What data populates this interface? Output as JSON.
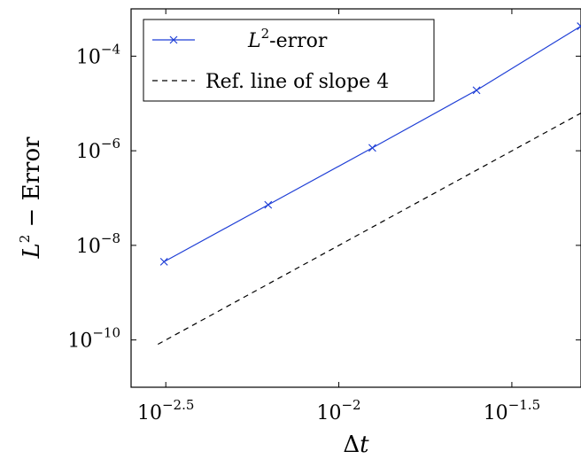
{
  "chart_data": {
    "type": "line",
    "title": "",
    "xlabel": "Δt",
    "ylabel": "L² − Error",
    "x_scale": "log",
    "y_scale": "log",
    "xlim": [
      0.00251,
      0.0501
    ],
    "ylim": [
      1e-11,
      0.001
    ],
    "x_ticks": [
      {
        "value": 0.0031623,
        "base": "10",
        "exp": "−2.5"
      },
      {
        "value": 0.01,
        "base": "10",
        "exp": "−2"
      },
      {
        "value": 0.031623,
        "base": "10",
        "exp": "−1.5"
      }
    ],
    "y_ticks": [
      {
        "value": 1e-10,
        "base": "10",
        "exp": "−10"
      },
      {
        "value": 1e-08,
        "base": "10",
        "exp": "−8"
      },
      {
        "value": 1e-06,
        "base": "10",
        "exp": "−6"
      },
      {
        "value": 0.0001,
        "base": "10",
        "exp": "−4"
      }
    ],
    "grid": false,
    "legend_position": "top-left",
    "series": [
      {
        "name": "L²-error",
        "color": "#1f3fd6",
        "marker": "x",
        "line_style": "solid",
        "x": [
          0.003125,
          0.00625,
          0.0125,
          0.025,
          0.05
        ],
        "y": [
          4.5e-09,
          7.2e-08,
          1.15e-06,
          1.9e-05,
          0.00043
        ]
      },
      {
        "name": "Ref. line of slope 4",
        "color": "#000000",
        "marker": "none",
        "line_style": "dashed",
        "x": [
          0.003,
          0.05
        ],
        "y": [
          8.1e-11,
          6.2e-06
        ]
      }
    ]
  },
  "legend": {
    "items": [
      {
        "label_main": "L",
        "label_sup": "2",
        "label_rest": "-error"
      },
      {
        "label_main": "Ref. line of slope 4",
        "label_sup": "",
        "label_rest": ""
      }
    ]
  },
  "axes": {
    "xlabel_main": "Δt",
    "ylabel_L": "L",
    "ylabel_sup": "2",
    "ylabel_rest": " − Error"
  }
}
